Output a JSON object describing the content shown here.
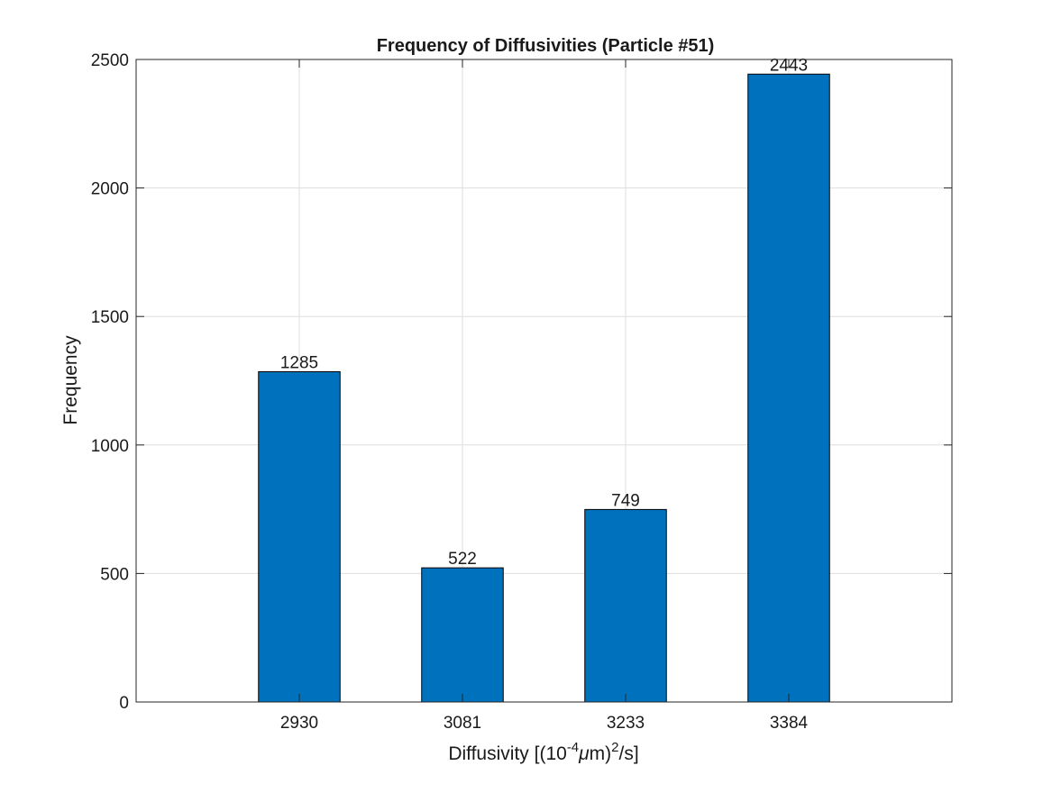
{
  "chart_data": {
    "type": "bar",
    "title": "Frequency of Diffusivities (Particle #51)",
    "xlabel": {
      "prefix": "Diffusivity [(10",
      "exp1": "-4",
      "mu": "μ",
      "mid": "m)",
      "exp2": "2",
      "suffix": "/s]"
    },
    "ylabel": "Frequency",
    "categories": [
      "2930",
      "3081",
      "3233",
      "3384"
    ],
    "values": [
      1285,
      522,
      749,
      2443
    ],
    "data_labels": [
      "1285",
      "522",
      "749",
      "2443"
    ],
    "ylim": [
      0,
      2500
    ],
    "yticks": [
      "0",
      "500",
      "1000",
      "1500",
      "2000",
      "2500"
    ],
    "grid": true,
    "legend": "none",
    "bar_color": "#0072BD"
  }
}
